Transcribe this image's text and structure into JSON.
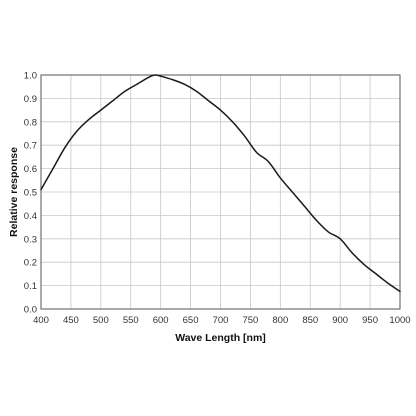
{
  "chart_data": {
    "type": "line",
    "xlabel": "Wave Length [nm]",
    "ylabel": "Relative response",
    "xlim": [
      400,
      1000
    ],
    "ylim": [
      0,
      1.0
    ],
    "x_ticks": [
      400,
      450,
      500,
      550,
      600,
      650,
      700,
      750,
      800,
      850,
      900,
      950,
      1000
    ],
    "y_ticks": [
      0,
      0.1,
      0.2,
      0.3,
      0.4,
      0.5,
      0.6,
      0.7,
      0.8,
      0.9,
      1.0
    ],
    "x_tick_labels": [
      "400",
      "450",
      "500",
      "550",
      "600",
      "650",
      "700",
      "750",
      "800",
      "850",
      "900",
      "950",
      "1000"
    ],
    "y_tick_labels": [
      "0.0",
      "0.1",
      "0.2",
      "0.3",
      "0.4",
      "0.5",
      "0.6",
      "0.7",
      "0.8",
      "0.9",
      "1.0"
    ],
    "grid": true,
    "legend": "none",
    "line_color": "#1a1a1a",
    "series": [
      {
        "x": [
          400,
          420,
          440,
          460,
          480,
          500,
          520,
          540,
          560,
          580,
          590,
          600,
          620,
          640,
          660,
          680,
          700,
          720,
          740,
          760,
          780,
          800,
          820,
          840,
          860,
          880,
          900,
          920,
          940,
          960,
          980,
          1000
        ],
        "y": [
          0.51,
          0.6,
          0.69,
          0.76,
          0.81,
          0.85,
          0.89,
          0.93,
          0.96,
          0.99,
          1.0,
          0.995,
          0.98,
          0.96,
          0.93,
          0.89,
          0.85,
          0.8,
          0.74,
          0.67,
          0.63,
          0.56,
          0.5,
          0.44,
          0.38,
          0.33,
          0.3,
          0.24,
          0.19,
          0.15,
          0.11,
          0.075
        ]
      }
    ]
  }
}
